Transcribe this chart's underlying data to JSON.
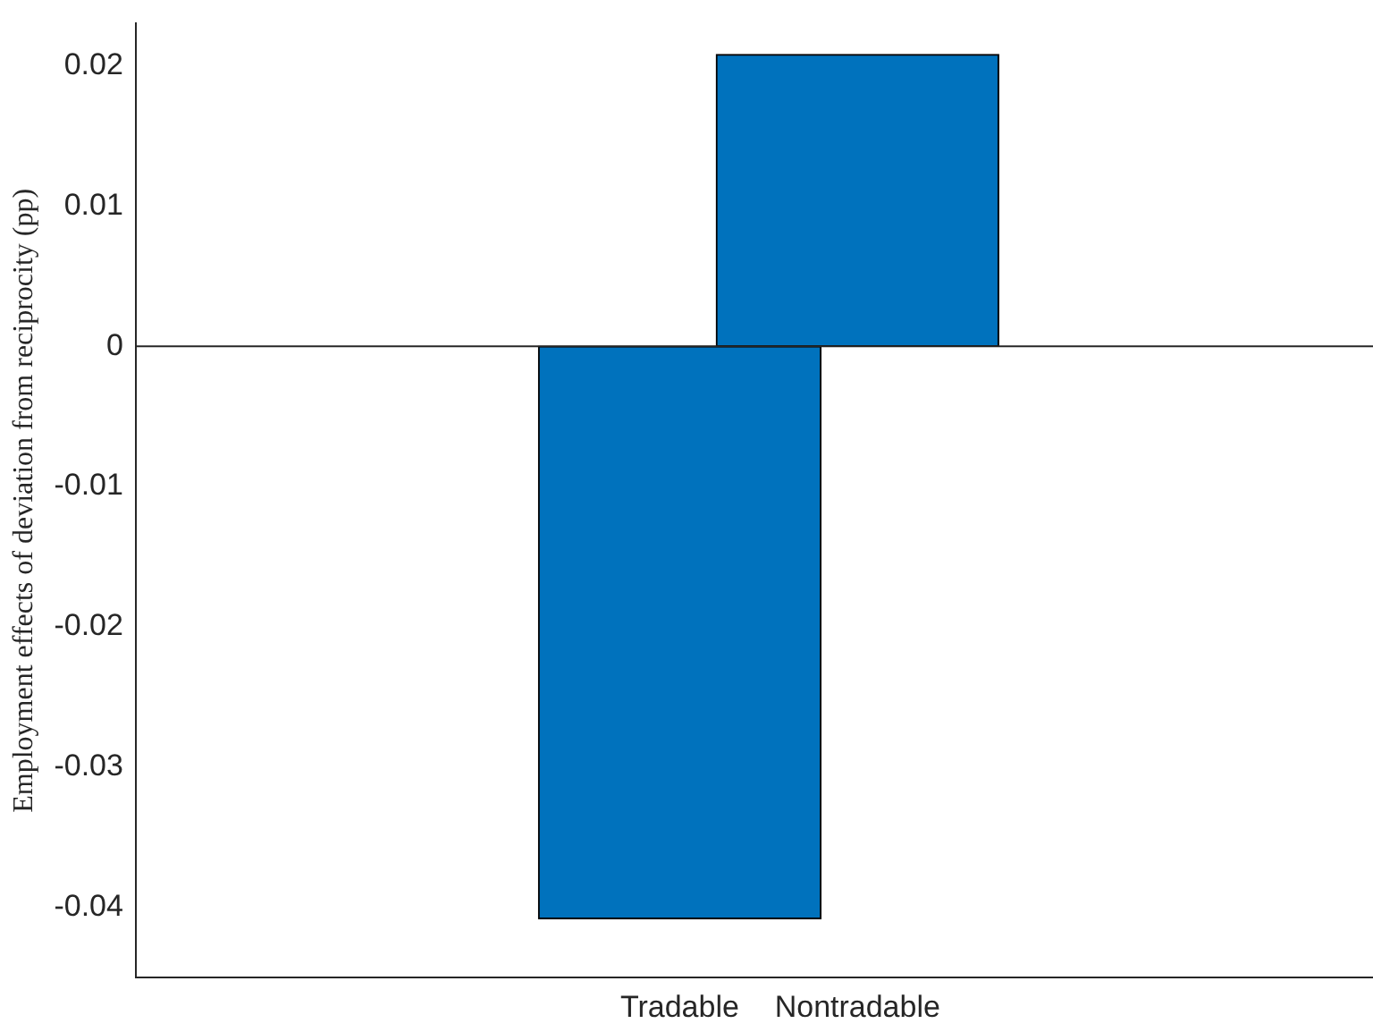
{
  "chart_data": {
    "type": "bar",
    "ylabel": "Employment effects of deviation from reciprocity (pp)",
    "categories": [
      "Tradable",
      "Nontradable"
    ],
    "values": [
      -0.0408,
      0.0208
    ],
    "color": "#0072bd",
    "ylim": [
      -0.045,
      0.023
    ],
    "yticks": [
      {
        "value": -0.04,
        "label": "-0.04"
      },
      {
        "value": -0.03,
        "label": "-0.03"
      },
      {
        "value": -0.02,
        "label": "-0.02"
      },
      {
        "value": -0.01,
        "label": "-0.01"
      },
      0,
      {
        "value": 0.01,
        "label": "0.01"
      },
      {
        "value": 0.02,
        "label": "0.02"
      }
    ],
    "ref_lines": [
      {
        "axis": "y",
        "value": 0,
        "color": "#262626"
      }
    ],
    "grid": false,
    "legend": false
  }
}
